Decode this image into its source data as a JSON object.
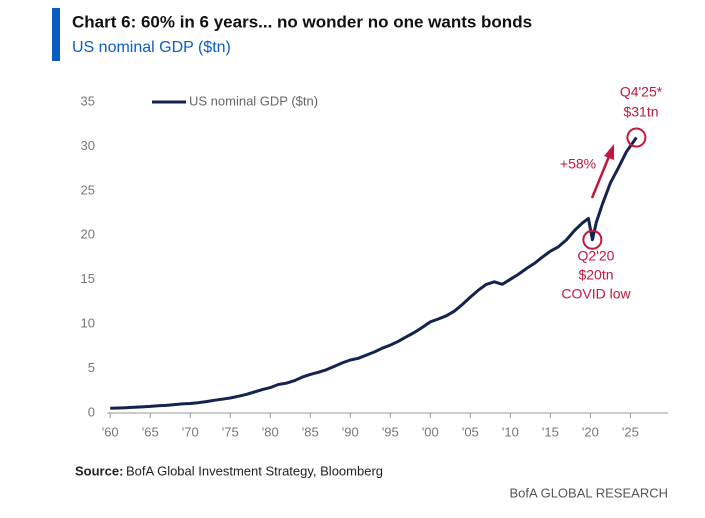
{
  "chart_data": {
    "type": "line",
    "title": "Chart 6: 60% in 6 years... no wonder no one wants bonds",
    "subtitle": "US nominal GDP ($tn)",
    "x": [
      1960,
      1961,
      1962,
      1963,
      1964,
      1965,
      1966,
      1967,
      1968,
      1969,
      1970,
      1971,
      1972,
      1973,
      1974,
      1975,
      1976,
      1977,
      1978,
      1979,
      1980,
      1981,
      1982,
      1983,
      1984,
      1985,
      1986,
      1987,
      1988,
      1989,
      1990,
      1991,
      1992,
      1993,
      1994,
      1995,
      1996,
      1997,
      1998,
      1999,
      2000,
      2001,
      2002,
      2003,
      2004,
      2005,
      2006,
      2007,
      2008,
      2009,
      2010,
      2011,
      2012,
      2013,
      2014,
      2015,
      2016,
      2017,
      2018,
      2019,
      2019.75,
      2020.25,
      2020.75,
      2021.5,
      2022.5,
      2023.5,
      2024.5,
      2025.75
    ],
    "series": [
      {
        "name": "US nominal GDP ($tn)",
        "color": "#14234f",
        "values": [
          0.54,
          0.56,
          0.6,
          0.64,
          0.69,
          0.74,
          0.82,
          0.86,
          0.94,
          1.02,
          1.07,
          1.16,
          1.28,
          1.43,
          1.55,
          1.69,
          1.88,
          2.09,
          2.36,
          2.63,
          2.86,
          3.21,
          3.35,
          3.64,
          4.04,
          4.34,
          4.58,
          4.86,
          5.24,
          5.64,
          5.96,
          6.16,
          6.52,
          6.86,
          7.29,
          7.64,
          8.07,
          8.58,
          9.06,
          9.63,
          10.25,
          10.58,
          10.94,
          11.46,
          12.21,
          13.04,
          13.82,
          14.47,
          14.77,
          14.48,
          15.05,
          15.6,
          16.25,
          16.84,
          17.55,
          18.21,
          18.7,
          19.48,
          20.53,
          21.38,
          21.9,
          19.5,
          21.5,
          23.5,
          25.9,
          27.6,
          29.4,
          31
        ]
      }
    ],
    "xlim": [
      1959.6,
      2029.7
    ],
    "xticks": [
      {
        "value": 1960,
        "label": "'60"
      },
      {
        "value": 1965,
        "label": "'65"
      },
      {
        "value": 1970,
        "label": "'70"
      },
      {
        "value": 1975,
        "label": "'75"
      },
      {
        "value": 1980,
        "label": "'80"
      },
      {
        "value": 1985,
        "label": "'85"
      },
      {
        "value": 1990,
        "label": "'90"
      },
      {
        "value": 1995,
        "label": "'95"
      },
      {
        "value": 2000,
        "label": "'00"
      },
      {
        "value": 2005,
        "label": "'05"
      },
      {
        "value": 2010,
        "label": "'10"
      },
      {
        "value": 2015,
        "label": "'15"
      },
      {
        "value": 2020,
        "label": "'20"
      },
      {
        "value": 2025,
        "label": "'25"
      }
    ],
    "ylim": [
      0,
      35
    ],
    "yticks": [
      0,
      5,
      10,
      15,
      20,
      25,
      30,
      35
    ],
    "legend": "upper left",
    "annotations": [
      "+58%",
      "Q4'25*",
      "$31tn",
      "Q2'20",
      "$20tn",
      "COVID low"
    ],
    "source": {
      "label": "Source:",
      "text": "BofA Global Investment Strategy, Bloomberg"
    },
    "footer": "BofA GLOBAL RESEARCH"
  }
}
